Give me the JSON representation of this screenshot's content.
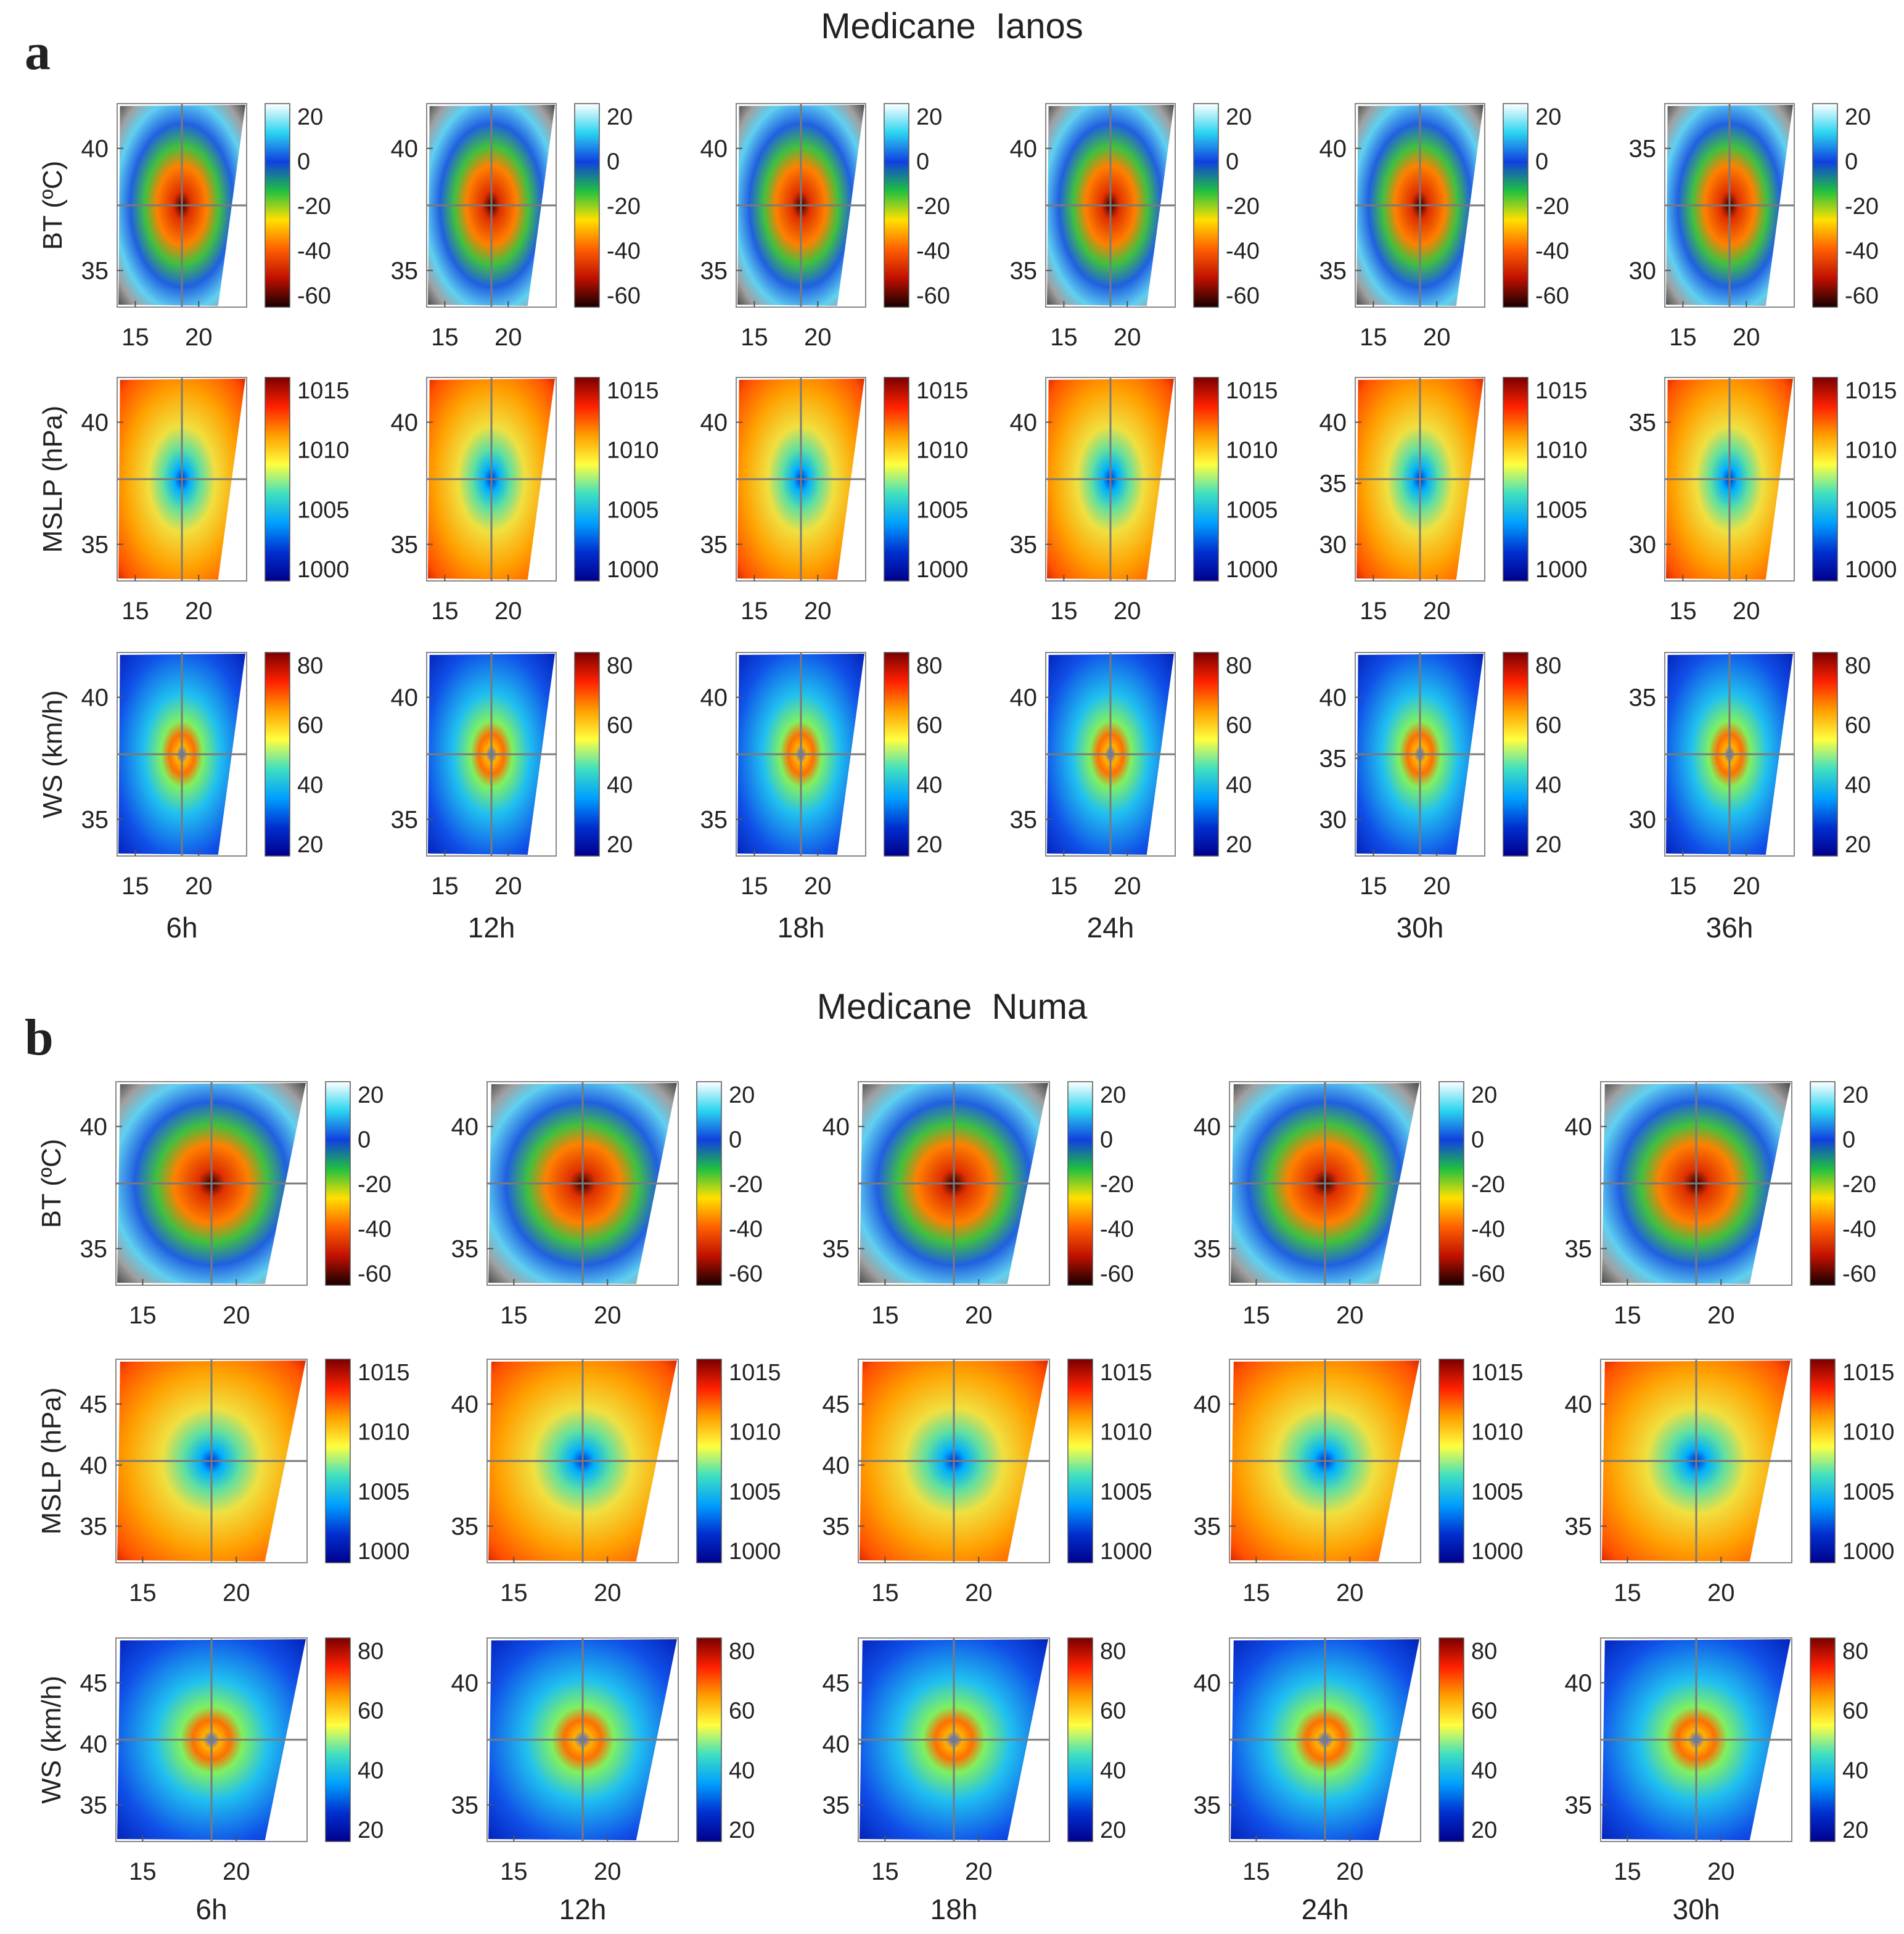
{
  "figure": {
    "panel_a": {
      "letter": "a",
      "title": "Medicane  Ianos",
      "times": [
        "6h",
        "12h",
        "18h",
        "24h",
        "30h",
        "36h"
      ],
      "yticks": [
        {
          "BT": [
            40,
            35
          ],
          "MSLP": [
            40,
            35
          ],
          "WS": [
            40,
            35
          ]
        },
        {
          "BT": [
            40,
            35
          ],
          "MSLP": [
            40,
            35
          ],
          "WS": [
            40,
            35
          ]
        },
        {
          "BT": [
            40,
            35
          ],
          "MSLP": [
            40,
            35
          ],
          "WS": [
            40,
            35
          ]
        },
        {
          "BT": [
            40,
            35
          ],
          "MSLP": [
            40,
            35
          ],
          "WS": [
            40,
            35
          ]
        },
        {
          "BT": [
            40,
            35
          ],
          "MSLP": [
            40,
            35,
            30
          ],
          "WS": [
            40,
            35,
            30
          ]
        },
        {
          "BT": [
            35,
            30
          ],
          "MSLP": [
            35,
            30
          ],
          "WS": [
            35,
            30
          ]
        }
      ]
    },
    "panel_b": {
      "letter": "b",
      "title": "Medicane  Numa",
      "times": [
        "6h",
        "12h",
        "18h",
        "24h",
        "30h"
      ],
      "yticks": [
        {
          "BT": [
            40,
            35
          ],
          "MSLP": [
            45,
            40,
            35
          ],
          "WS": [
            45,
            40,
            35
          ]
        },
        {
          "BT": [
            40,
            35
          ],
          "MSLP": [
            40,
            35
          ],
          "WS": [
            40,
            35
          ]
        },
        {
          "BT": [
            40,
            35
          ],
          "MSLP": [
            45,
            40,
            35
          ],
          "WS": [
            45,
            40,
            35
          ]
        },
        {
          "BT": [
            40,
            35
          ],
          "MSLP": [
            40,
            35
          ],
          "WS": [
            40,
            35
          ]
        },
        {
          "BT": [
            40,
            35
          ],
          "MSLP": [
            40,
            35
          ],
          "WS": [
            40,
            35
          ]
        }
      ]
    }
  },
  "chart_data": {
    "type": "heatmap",
    "xticks": [
      15,
      20
    ],
    "variables": [
      {
        "key": "BT",
        "ylabel": "BT (ºC)",
        "colorbar_ticks": [
          20,
          0,
          -20,
          -40,
          -60
        ],
        "colormap": [
          "#ffffff",
          "#2bd4f0",
          "#1040e0",
          "#20c040",
          "#ffe000",
          "#ff6000",
          "#c01000",
          "#180000"
        ]
      },
      {
        "key": "MSLP",
        "ylabel": "MSLP (hPa)",
        "colorbar_ticks": [
          1015,
          1010,
          1005,
          1000
        ],
        "colormap": [
          "#7a0000",
          "#ff2000",
          "#ffa000",
          "#ffff40",
          "#40e0c0",
          "#00a0ff",
          "#0030d0",
          "#00008c"
        ]
      },
      {
        "key": "WS",
        "ylabel": "WS (km/h)",
        "colorbar_ticks": [
          80,
          60,
          40,
          20
        ],
        "colormap": [
          "#7a0000",
          "#ff2000",
          "#ffa000",
          "#ffff40",
          "#40e0c0",
          "#00a0ff",
          "#0030d0",
          "#00008c"
        ]
      }
    ]
  }
}
